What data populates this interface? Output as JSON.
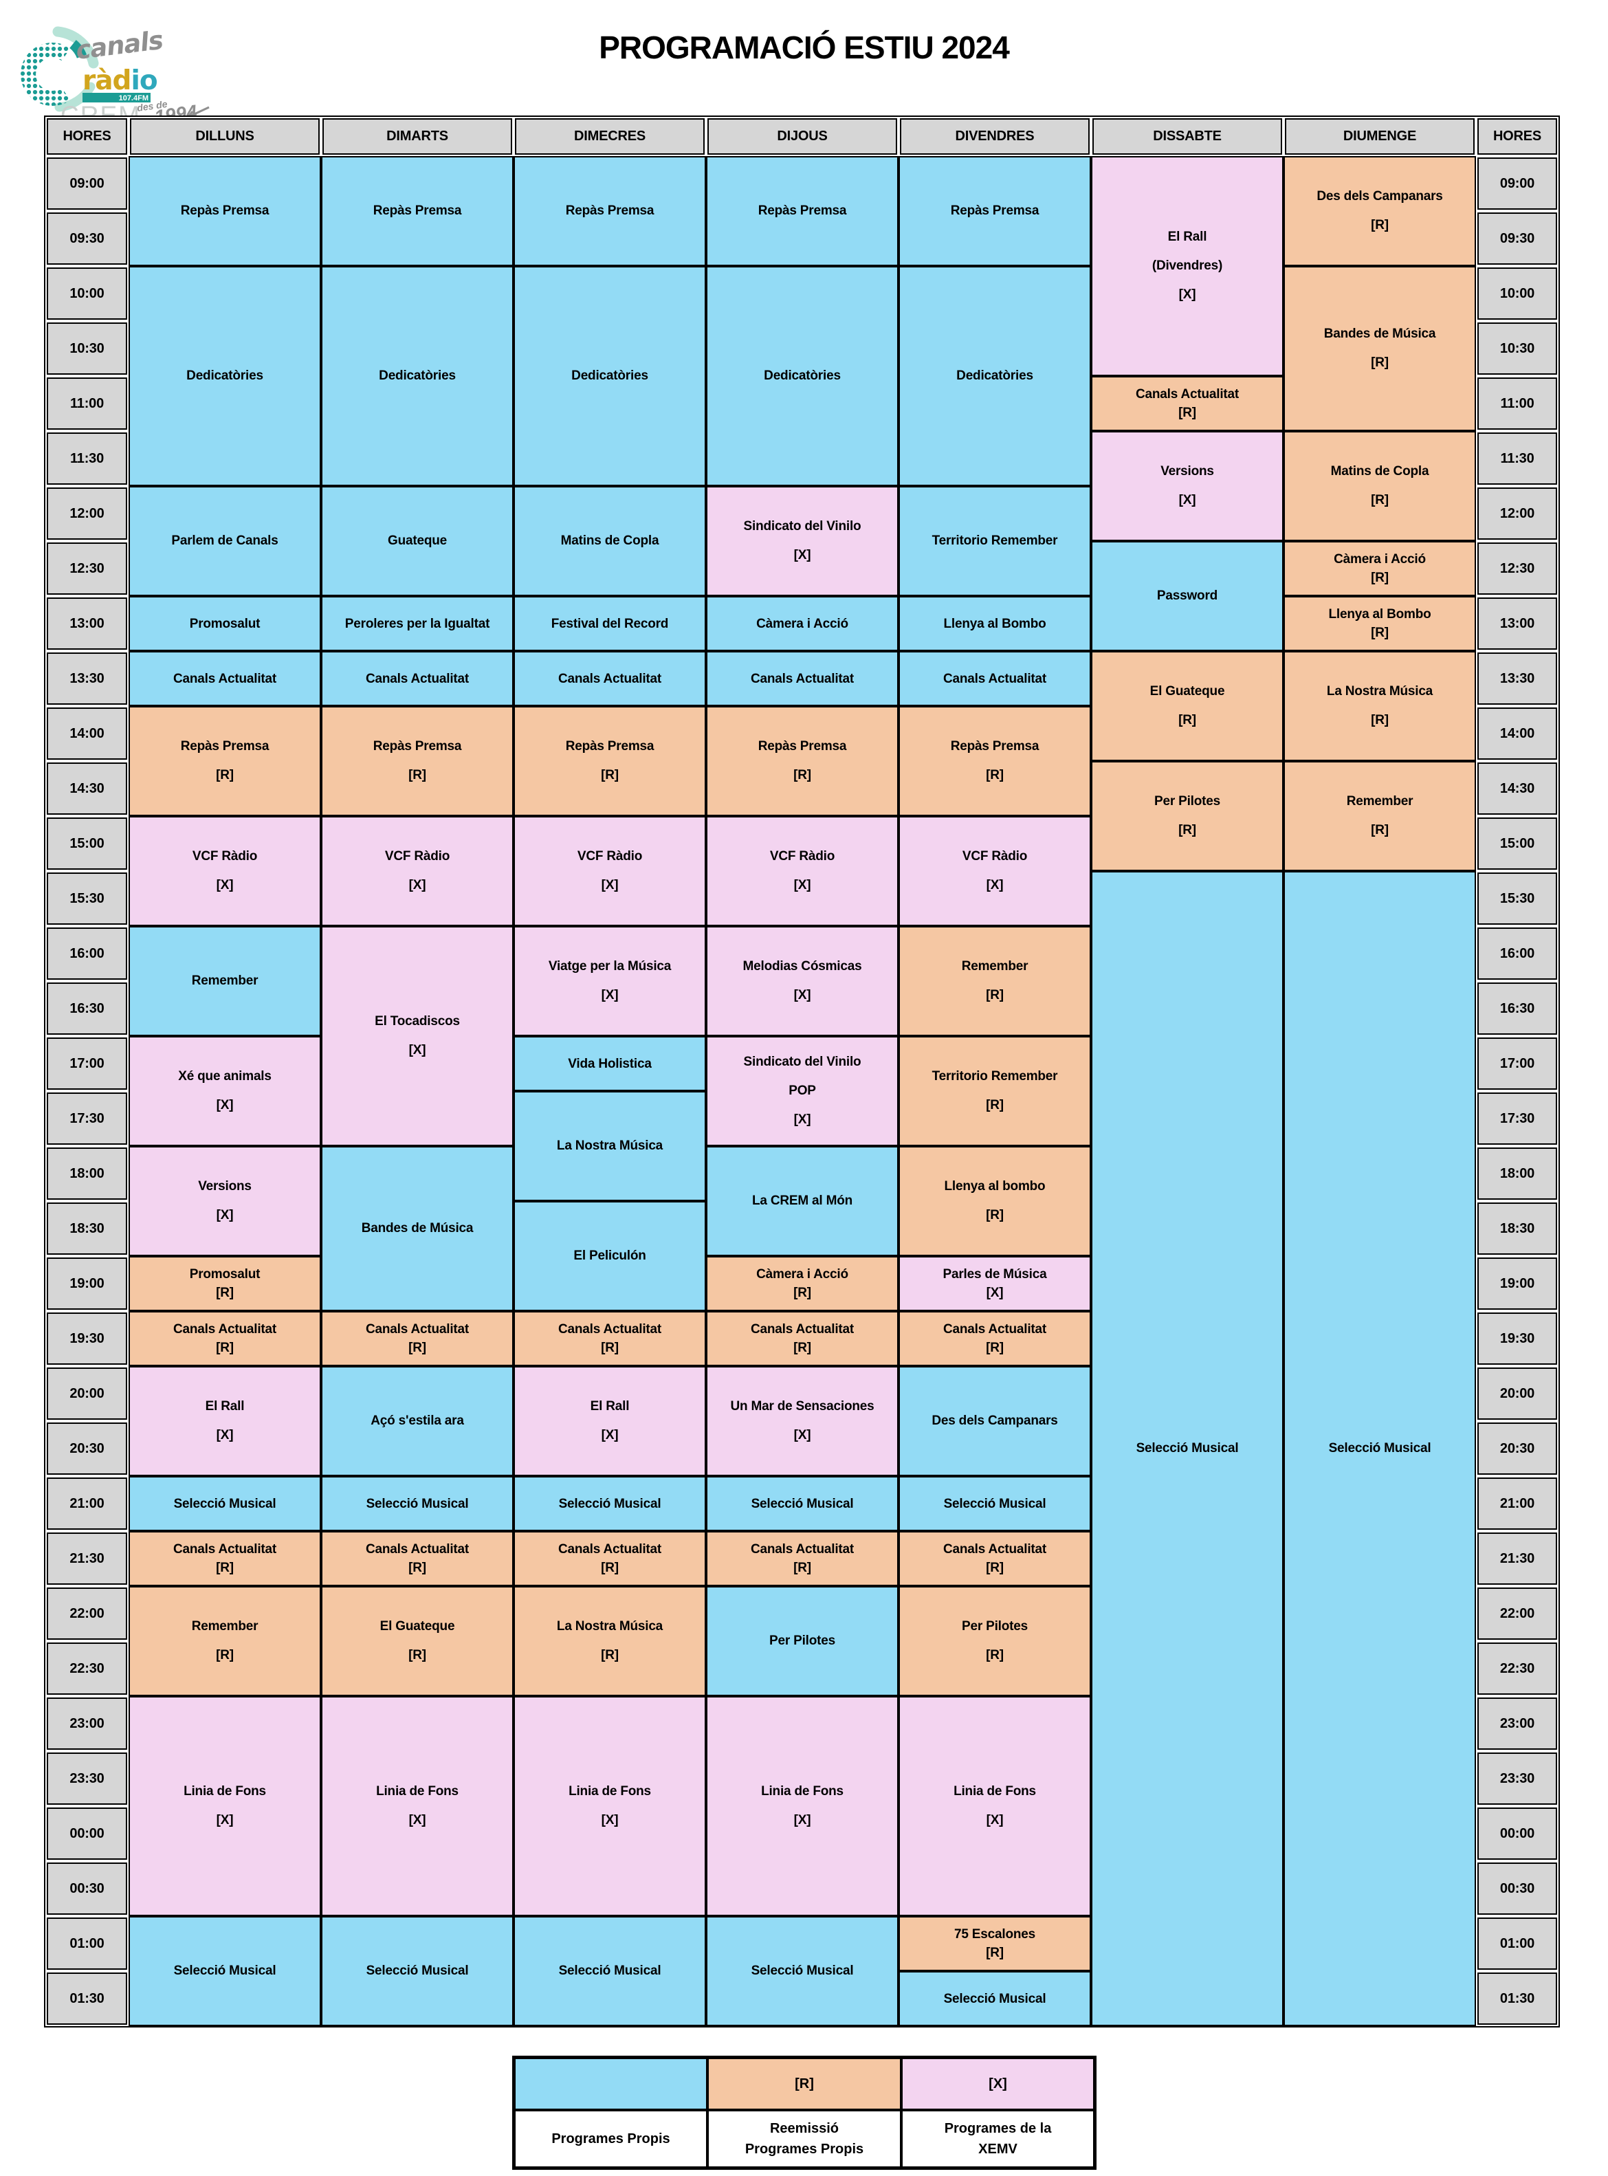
{
  "title": "PROGRAMACIÓ ESTIU 2024",
  "logo": {
    "word1": "canals",
    "radio_gold": "ràd",
    "radio_teal": "io",
    "freq": "107.4FM",
    "station": "CREM",
    "since_prefix": "des de",
    "since_year": "1994"
  },
  "colors": {
    "propis": "#93DBF5",
    "reemissio": "#F5C7A3",
    "xemv": "#F3D4F0",
    "header_gray": "#D6D6D6",
    "border": "#000000",
    "logo_teal": "#1B9C94",
    "logo_mint": "#B7E3D7",
    "logo_gold": "#D2A51E",
    "logo_cyan": "#2FA8BC",
    "logo_gray": "#8F8F8F",
    "logo_lightgray": "#CACFCD",
    "freq_text": "#FFFFFF"
  },
  "table": {
    "corner_left": "HORES",
    "corner_right": "HORES",
    "days": [
      "DILLUNS",
      "DIMARTS",
      "DIMECRES",
      "DIJOUS",
      "DIVENDRES",
      "DISSABTE",
      "DIUMENGE"
    ],
    "times": [
      "09:00",
      "09:30",
      "10:00",
      "10:30",
      "11:00",
      "11:30",
      "12:00",
      "12:30",
      "13:00",
      "13:30",
      "14:00",
      "14:30",
      "15:00",
      "15:30",
      "16:00",
      "16:30",
      "17:00",
      "17:30",
      "18:00",
      "18:30",
      "19:00",
      "19:30",
      "20:00",
      "20:30",
      "21:00",
      "21:30",
      "22:00",
      "22:30",
      "23:00",
      "23:30",
      "00:00",
      "00:30",
      "01:00",
      "01:30"
    ],
    "columns": [
      {
        "day": "DILLUNS",
        "blocks": [
          {
            "lines": [
              "Repàs Premsa"
            ],
            "t": "p",
            "s": 2
          },
          {
            "lines": [
              "Dedicatòries"
            ],
            "t": "p",
            "s": 4
          },
          {
            "lines": [
              "Parlem de Canals"
            ],
            "t": "p",
            "s": 2
          },
          {
            "lines": [
              "Promosalut"
            ],
            "t": "p",
            "s": 1
          },
          {
            "lines": [
              "Canals Actualitat"
            ],
            "t": "p",
            "s": 1
          },
          {
            "lines": [
              "Repàs Premsa",
              "[R]"
            ],
            "t": "r",
            "s": 2
          },
          {
            "lines": [
              "VCF Ràdio",
              "[X]"
            ],
            "t": "x",
            "s": 2
          },
          {
            "lines": [
              "Remember"
            ],
            "t": "p",
            "s": 2
          },
          {
            "lines": [
              "Xé que animals",
              "[X]"
            ],
            "t": "x",
            "s": 2
          },
          {
            "lines": [
              "Versions",
              "[X]"
            ],
            "t": "x",
            "s": 2
          },
          {
            "lines": [
              "Promosalut",
              "[R]"
            ],
            "t": "r",
            "s": 1
          },
          {
            "lines": [
              "Canals Actualitat",
              "[R]"
            ],
            "t": "r",
            "s": 1
          },
          {
            "lines": [
              "El Rall",
              "[X]"
            ],
            "t": "x",
            "s": 2
          },
          {
            "lines": [
              "Selecció Musical"
            ],
            "t": "p",
            "s": 1
          },
          {
            "lines": [
              "Canals Actualitat",
              "[R]"
            ],
            "t": "r",
            "s": 1
          },
          {
            "lines": [
              "Remember",
              "[R]"
            ],
            "t": "r",
            "s": 2
          },
          {
            "lines": [
              "Linia de Fons",
              "[X]"
            ],
            "t": "x",
            "s": 4
          },
          {
            "lines": [
              "Selecció Musical"
            ],
            "t": "p",
            "s": 2
          }
        ]
      },
      {
        "day": "DIMARTS",
        "blocks": [
          {
            "lines": [
              "Repàs Premsa"
            ],
            "t": "p",
            "s": 2
          },
          {
            "lines": [
              "Dedicatòries"
            ],
            "t": "p",
            "s": 4
          },
          {
            "lines": [
              "Guateque"
            ],
            "t": "p",
            "s": 2
          },
          {
            "lines": [
              "Peroleres per la Igualtat"
            ],
            "t": "p",
            "s": 1
          },
          {
            "lines": [
              "Canals Actualitat"
            ],
            "t": "p",
            "s": 1
          },
          {
            "lines": [
              "Repàs Premsa",
              "[R]"
            ],
            "t": "r",
            "s": 2
          },
          {
            "lines": [
              "VCF Ràdio",
              "[X]"
            ],
            "t": "x",
            "s": 2
          },
          {
            "lines": [
              "El Tocadiscos",
              "[X]"
            ],
            "t": "x",
            "s": 4
          },
          {
            "lines": [
              "Bandes de Música"
            ],
            "t": "p",
            "s": 3
          },
          {
            "lines": [
              "Canals Actualitat",
              "[R]"
            ],
            "t": "r",
            "s": 1
          },
          {
            "lines": [
              "Açó s'estila ara"
            ],
            "t": "p",
            "s": 2
          },
          {
            "lines": [
              "Selecció Musical"
            ],
            "t": "p",
            "s": 1
          },
          {
            "lines": [
              "Canals Actualitat",
              "[R]"
            ],
            "t": "r",
            "s": 1
          },
          {
            "lines": [
              "El Guateque",
              "[R]"
            ],
            "t": "r",
            "s": 2
          },
          {
            "lines": [
              "Linia de Fons",
              "[X]"
            ],
            "t": "x",
            "s": 4
          },
          {
            "lines": [
              "Selecció Musical"
            ],
            "t": "p",
            "s": 2
          }
        ]
      },
      {
        "day": "DIMECRES",
        "blocks": [
          {
            "lines": [
              "Repàs Premsa"
            ],
            "t": "p",
            "s": 2
          },
          {
            "lines": [
              "Dedicatòries"
            ],
            "t": "p",
            "s": 4
          },
          {
            "lines": [
              "Matins de Copla"
            ],
            "t": "p",
            "s": 2
          },
          {
            "lines": [
              "Festival del Record"
            ],
            "t": "p",
            "s": 1
          },
          {
            "lines": [
              "Canals Actualitat"
            ],
            "t": "p",
            "s": 1
          },
          {
            "lines": [
              "Repàs Premsa",
              "[R]"
            ],
            "t": "r",
            "s": 2
          },
          {
            "lines": [
              "VCF Ràdio",
              "[X]"
            ],
            "t": "x",
            "s": 2
          },
          {
            "lines": [
              "Viatge per la Música",
              "[X]"
            ],
            "t": "x",
            "s": 2
          },
          {
            "lines": [
              "Vida Holistica"
            ],
            "t": "p",
            "s": 1
          },
          {
            "lines": [
              "La Nostra Música"
            ],
            "t": "p",
            "s": 2
          },
          {
            "lines": [
              "El Peliculón"
            ],
            "t": "p",
            "s": 2
          },
          {
            "lines": [
              "Canals Actualitat",
              "[R]"
            ],
            "t": "r",
            "s": 1
          },
          {
            "lines": [
              "El Rall",
              "[X]"
            ],
            "t": "x",
            "s": 2
          },
          {
            "lines": [
              "Selecció Musical"
            ],
            "t": "p",
            "s": 1
          },
          {
            "lines": [
              "Canals Actualitat",
              "[R]"
            ],
            "t": "r",
            "s": 1
          },
          {
            "lines": [
              "La Nostra Música",
              "[R]"
            ],
            "t": "r",
            "s": 2
          },
          {
            "lines": [
              "Linia de Fons",
              "[X]"
            ],
            "t": "x",
            "s": 4
          },
          {
            "lines": [
              "Selecció Musical"
            ],
            "t": "p",
            "s": 2
          }
        ]
      },
      {
        "day": "DIJOUS",
        "blocks": [
          {
            "lines": [
              "Repàs Premsa"
            ],
            "t": "p",
            "s": 2
          },
          {
            "lines": [
              "Dedicatòries"
            ],
            "t": "p",
            "s": 4
          },
          {
            "lines": [
              "Sindicato del Vinilo",
              "[X]"
            ],
            "t": "x",
            "s": 2
          },
          {
            "lines": [
              "Càmera i Acció"
            ],
            "t": "p",
            "s": 1
          },
          {
            "lines": [
              "Canals Actualitat"
            ],
            "t": "p",
            "s": 1
          },
          {
            "lines": [
              "Repàs Premsa",
              "[R]"
            ],
            "t": "r",
            "s": 2
          },
          {
            "lines": [
              "VCF Ràdio",
              "[X]"
            ],
            "t": "x",
            "s": 2
          },
          {
            "lines": [
              "Melodias Cósmicas",
              "[X]"
            ],
            "t": "x",
            "s": 2
          },
          {
            "lines": [
              "Sindicato del Vinilo",
              "POP",
              "[X]"
            ],
            "t": "x",
            "s": 2
          },
          {
            "lines": [
              "La CREM al Món"
            ],
            "t": "p",
            "s": 2
          },
          {
            "lines": [
              "Càmera i Acció",
              "[R]"
            ],
            "t": "r",
            "s": 1
          },
          {
            "lines": [
              "Canals Actualitat",
              "[R]"
            ],
            "t": "r",
            "s": 1
          },
          {
            "lines": [
              "Un Mar de Sensaciones",
              "[X]"
            ],
            "t": "x",
            "s": 2
          },
          {
            "lines": [
              "Selecció Musical"
            ],
            "t": "p",
            "s": 1
          },
          {
            "lines": [
              "Canals Actualitat",
              "[R]"
            ],
            "t": "r",
            "s": 1
          },
          {
            "lines": [
              "Per Pilotes"
            ],
            "t": "p",
            "s": 2
          },
          {
            "lines": [
              "Linia de Fons",
              "[X]"
            ],
            "t": "x",
            "s": 4
          },
          {
            "lines": [
              "Selecció Musical"
            ],
            "t": "p",
            "s": 2
          }
        ]
      },
      {
        "day": "DIVENDRES",
        "blocks": [
          {
            "lines": [
              "Repàs Premsa"
            ],
            "t": "p",
            "s": 2
          },
          {
            "lines": [
              "Dedicatòries"
            ],
            "t": "p",
            "s": 4
          },
          {
            "lines": [
              "Territorio Remember"
            ],
            "t": "p",
            "s": 2
          },
          {
            "lines": [
              "Llenya al Bombo"
            ],
            "t": "p",
            "s": 1
          },
          {
            "lines": [
              "Canals Actualitat"
            ],
            "t": "p",
            "s": 1
          },
          {
            "lines": [
              "Repàs Premsa",
              "[R]"
            ],
            "t": "r",
            "s": 2
          },
          {
            "lines": [
              "VCF Ràdio",
              "[X]"
            ],
            "t": "x",
            "s": 2
          },
          {
            "lines": [
              "Remember",
              "[R]"
            ],
            "t": "r",
            "s": 2
          },
          {
            "lines": [
              "Territorio Remember",
              "[R]"
            ],
            "t": "r",
            "s": 2
          },
          {
            "lines": [
              "Llenya al bombo",
              "[R]"
            ],
            "t": "r",
            "s": 2
          },
          {
            "lines": [
              "Parles de Música",
              "[X]"
            ],
            "t": "x",
            "s": 1
          },
          {
            "lines": [
              "Canals Actualitat",
              "[R]"
            ],
            "t": "r",
            "s": 1
          },
          {
            "lines": [
              "Des dels Campanars"
            ],
            "t": "p",
            "s": 2
          },
          {
            "lines": [
              "Selecció Musical"
            ],
            "t": "p",
            "s": 1
          },
          {
            "lines": [
              "Canals Actualitat",
              "[R]"
            ],
            "t": "r",
            "s": 1
          },
          {
            "lines": [
              "Per Pilotes",
              "[R]"
            ],
            "t": "r",
            "s": 2
          },
          {
            "lines": [
              "Linia de Fons",
              "[X]"
            ],
            "t": "x",
            "s": 4
          },
          {
            "lines": [
              "75 Escalones",
              "[R]"
            ],
            "t": "r",
            "s": 1
          },
          {
            "lines": [
              "Selecció Musical"
            ],
            "t": "p",
            "s": 1
          }
        ]
      },
      {
        "day": "DISSABTE",
        "blocks": [
          {
            "lines": [
              "El Rall",
              "(Divendres)",
              "[X]"
            ],
            "t": "x",
            "s": 4
          },
          {
            "lines": [
              "Canals Actualitat",
              "[R]"
            ],
            "t": "r",
            "s": 1
          },
          {
            "lines": [
              "Versions",
              "[X]"
            ],
            "t": "x",
            "s": 2
          },
          {
            "lines": [
              "Password"
            ],
            "t": "p",
            "s": 2
          },
          {
            "lines": [
              "El Guateque",
              "[R]"
            ],
            "t": "r",
            "s": 2
          },
          {
            "lines": [
              "Per Pilotes",
              "[R]"
            ],
            "t": "r",
            "s": 2
          },
          {
            "lines": [
              "Selecció Musical"
            ],
            "t": "p",
            "s": 21
          }
        ]
      },
      {
        "day": "DIUMENGE",
        "blocks": [
          {
            "lines": [
              "Des dels Campanars",
              "[R]"
            ],
            "t": "r",
            "s": 2
          },
          {
            "lines": [
              "Bandes de Música",
              "[R]"
            ],
            "t": "r",
            "s": 3
          },
          {
            "lines": [
              "Matins de Copla",
              "[R]"
            ],
            "t": "r",
            "s": 2
          },
          {
            "lines": [
              "Càmera i Acció",
              "[R]"
            ],
            "t": "r",
            "s": 1
          },
          {
            "lines": [
              "Llenya al Bombo",
              "[R]"
            ],
            "t": "r",
            "s": 1
          },
          {
            "lines": [
              "La Nostra Música",
              "[R]"
            ],
            "t": "r",
            "s": 2
          },
          {
            "lines": [
              "Remember",
              "[R]"
            ],
            "t": "r",
            "s": 2
          },
          {
            "lines": [
              "Selecció Musical"
            ],
            "t": "p",
            "s": 21
          }
        ]
      }
    ]
  },
  "legend": {
    "swatches": [
      {
        "t": "p",
        "tag": ""
      },
      {
        "t": "r",
        "tag": "[R]"
      },
      {
        "t": "x",
        "tag": "[X]"
      }
    ],
    "labels": [
      [
        "Programes Propis"
      ],
      [
        "Reemissió",
        "Programes Propis"
      ],
      [
        "Programes de la",
        "XEMV"
      ]
    ]
  }
}
